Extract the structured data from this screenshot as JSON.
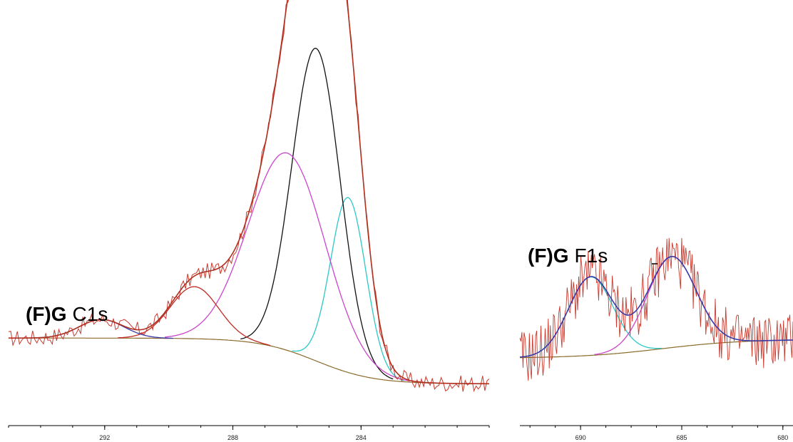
{
  "chart_data": [
    {
      "type": "line",
      "panel_label_bold": "(F)G",
      "panel_label": "C1s",
      "x_reversed": true,
      "xlim": [
        295.0,
        280.0
      ],
      "ylim": [
        0,
        100
      ],
      "x_ticks": [
        "292",
        "288",
        "284"
      ],
      "x_tick_values": [
        292,
        288,
        284
      ],
      "colors": {
        "envelope": "#b03020",
        "raw": "#c83a2e",
        "background": "#8a6a2a",
        "peak_284": "#2bc8c8",
        "peak_285": "#111111",
        "peak_286": "#cc44cc",
        "peak_289": "#c02a24",
        "peak_292": "#3a3aa8"
      },
      "background_start": 12.6,
      "background_end": 0.3,
      "background_center": 285.4,
      "background_width": 0.9,
      "peaks": [
        {
          "center": 284.4,
          "height": 47,
          "sigma": 0.55,
          "color_key": "peak_284"
        },
        {
          "center": 285.4,
          "height": 84,
          "sigma": 0.75,
          "color_key": "peak_285"
        },
        {
          "center": 286.3,
          "height": 53,
          "sigma": 1.2,
          "color_key": "peak_286"
        },
        {
          "center": 289.2,
          "height": 14,
          "sigma": 0.75,
          "color_key": "peak_289"
        },
        {
          "center": 292.1,
          "height": 5,
          "sigma": 0.7,
          "color_key": "peak_292"
        }
      ],
      "noise_amplitude": 2.2,
      "raw_points": 220
    },
    {
      "type": "line",
      "panel_label_bold": "(F)G",
      "panel_label": "F1s",
      "x_reversed": true,
      "xlim": [
        693.0,
        679.5
      ],
      "ylim": [
        0,
        100
      ],
      "x_ticks": [
        "690",
        "685",
        "680"
      ],
      "x_tick_values": [
        690,
        685,
        680
      ],
      "colors": {
        "envelope": "#3a3aa8",
        "raw": "#c83a2e",
        "background": "#8a6a2a",
        "peak_689": "#2bc8c8",
        "peak_685": "#cc44cc"
      },
      "background_start": 8,
      "background_end": 20,
      "background_center": 686,
      "background_width": 2,
      "peaks": [
        {
          "center": 689.5,
          "height": 50,
          "sigma": 1.1,
          "color_key": "peak_689"
        },
        {
          "center": 685.5,
          "height": 58,
          "sigma": 1.2,
          "color_key": "peak_685"
        }
      ],
      "noise_amplitude": 18,
      "raw_points": 260
    }
  ]
}
